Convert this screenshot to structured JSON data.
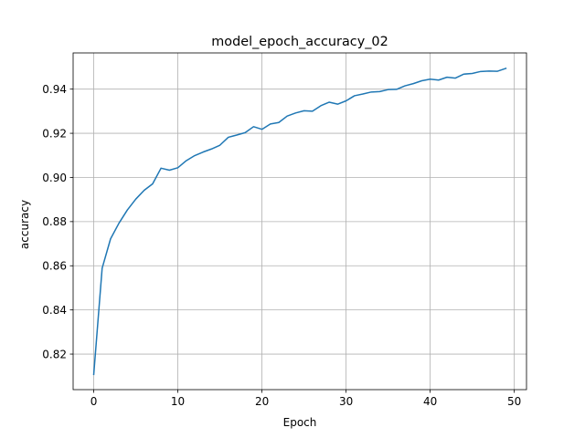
{
  "chart_data": {
    "type": "line",
    "title": "model_epoch_accuracy_02",
    "xlabel": "Epoch",
    "ylabel": "accuracy",
    "xlim": [
      -2.45,
      51.45
    ],
    "ylim": [
      0.8039,
      0.9564
    ],
    "xticks": [
      0,
      10,
      20,
      30,
      40,
      50
    ],
    "xtick_labels": [
      "0",
      "10",
      "20",
      "30",
      "40",
      "50"
    ],
    "yticks": [
      0.82,
      0.84,
      0.86,
      0.88,
      0.9,
      0.92,
      0.94
    ],
    "ytick_labels": [
      "0.82",
      "0.84",
      "0.86",
      "0.88",
      "0.90",
      "0.92",
      "0.94"
    ],
    "grid": true,
    "legend": "none",
    "series": [
      {
        "color": "#1f77b4",
        "x": [
          0,
          1,
          2,
          3,
          4,
          5,
          6,
          7,
          8,
          9,
          10,
          11,
          12,
          13,
          14,
          15,
          16,
          17,
          18,
          19,
          20,
          21,
          22,
          23,
          24,
          25,
          26,
          27,
          28,
          29,
          30,
          31,
          32,
          33,
          34,
          35,
          36,
          37,
          38,
          39,
          40,
          41,
          42,
          43,
          44,
          45,
          46,
          47,
          48,
          49
        ],
        "y": [
          0.8108,
          0.8589,
          0.8722,
          0.8793,
          0.8853,
          0.8902,
          0.8942,
          0.8971,
          0.9042,
          0.9033,
          0.9044,
          0.9076,
          0.9099,
          0.9115,
          0.9129,
          0.9146,
          0.9182,
          0.9192,
          0.9203,
          0.923,
          0.9218,
          0.9242,
          0.9249,
          0.9278,
          0.9292,
          0.9302,
          0.93,
          0.9325,
          0.9341,
          0.9332,
          0.9347,
          0.937,
          0.9378,
          0.9387,
          0.9389,
          0.9398,
          0.9399,
          0.9415,
          0.9425,
          0.9438,
          0.9445,
          0.9441,
          0.9454,
          0.945,
          0.9468,
          0.9471,
          0.948,
          0.9482,
          0.9481,
          0.9494
        ]
      }
    ]
  }
}
